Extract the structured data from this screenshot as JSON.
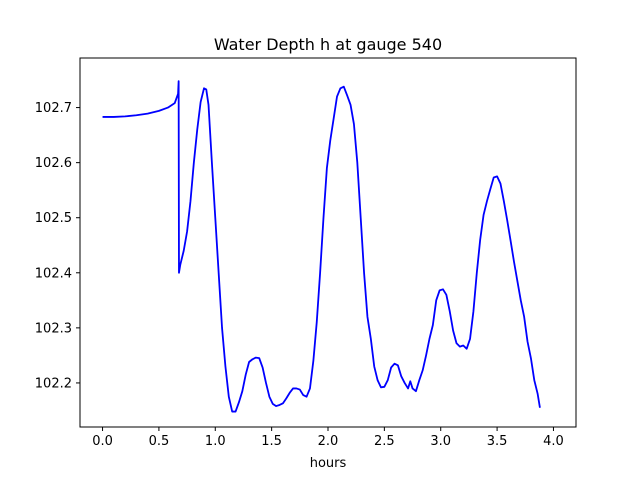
{
  "chart_data": {
    "type": "line",
    "title": "Water Depth h at gauge 540",
    "xlabel": "hours",
    "ylabel": "",
    "xlim": [
      -0.2,
      4.2
    ],
    "ylim": [
      102.12,
      102.79
    ],
    "grid": false,
    "legend": "none",
    "x_ticks": [
      0.0,
      0.5,
      1.0,
      1.5,
      2.0,
      2.5,
      3.0,
      3.5,
      4.0
    ],
    "x_tick_labels": [
      "0.0",
      "0.5",
      "1.0",
      "1.5",
      "2.0",
      "2.5",
      "3.0",
      "3.5",
      "4.0"
    ],
    "y_ticks": [
      102.2,
      102.3,
      102.4,
      102.5,
      102.6,
      102.7
    ],
    "y_tick_labels": [
      "102.2",
      "102.3",
      "102.4",
      "102.5",
      "102.6",
      "102.7"
    ],
    "series": [
      {
        "color": "#0000ff",
        "points": [
          [
            0.0,
            102.683
          ],
          [
            0.1,
            102.683
          ],
          [
            0.2,
            102.684
          ],
          [
            0.3,
            102.686
          ],
          [
            0.4,
            102.689
          ],
          [
            0.5,
            102.694
          ],
          [
            0.58,
            102.7
          ],
          [
            0.64,
            102.708
          ],
          [
            0.67,
            102.725
          ],
          [
            0.675,
            102.748
          ],
          [
            0.678,
            102.4
          ],
          [
            0.69,
            102.415
          ],
          [
            0.72,
            102.44
          ],
          [
            0.75,
            102.475
          ],
          [
            0.78,
            102.53
          ],
          [
            0.81,
            102.6
          ],
          [
            0.84,
            102.66
          ],
          [
            0.87,
            102.71
          ],
          [
            0.9,
            102.735
          ],
          [
            0.92,
            102.733
          ],
          [
            0.94,
            102.705
          ],
          [
            0.97,
            102.6
          ],
          [
            1.0,
            102.5
          ],
          [
            1.03,
            102.4
          ],
          [
            1.06,
            102.3
          ],
          [
            1.09,
            102.23
          ],
          [
            1.12,
            102.175
          ],
          [
            1.15,
            102.148
          ],
          [
            1.18,
            102.148
          ],
          [
            1.21,
            102.165
          ],
          [
            1.24,
            102.185
          ],
          [
            1.27,
            102.215
          ],
          [
            1.3,
            102.238
          ],
          [
            1.33,
            102.243
          ],
          [
            1.36,
            102.246
          ],
          [
            1.39,
            102.245
          ],
          [
            1.42,
            102.228
          ],
          [
            1.45,
            102.2
          ],
          [
            1.48,
            102.175
          ],
          [
            1.51,
            102.162
          ],
          [
            1.54,
            102.158
          ],
          [
            1.57,
            102.16
          ],
          [
            1.6,
            102.163
          ],
          [
            1.63,
            102.172
          ],
          [
            1.66,
            102.182
          ],
          [
            1.69,
            102.19
          ],
          [
            1.72,
            102.19
          ],
          [
            1.75,
            102.188
          ],
          [
            1.78,
            102.178
          ],
          [
            1.81,
            102.175
          ],
          [
            1.84,
            102.19
          ],
          [
            1.87,
            102.24
          ],
          [
            1.9,
            102.31
          ],
          [
            1.93,
            102.4
          ],
          [
            1.96,
            102.5
          ],
          [
            1.99,
            102.59
          ],
          [
            2.02,
            102.64
          ],
          [
            2.05,
            102.68
          ],
          [
            2.08,
            102.72
          ],
          [
            2.11,
            102.735
          ],
          [
            2.14,
            102.738
          ],
          [
            2.17,
            102.722
          ],
          [
            2.2,
            102.705
          ],
          [
            2.23,
            102.67
          ],
          [
            2.26,
            102.6
          ],
          [
            2.29,
            102.5
          ],
          [
            2.32,
            102.4
          ],
          [
            2.35,
            102.32
          ],
          [
            2.38,
            102.28
          ],
          [
            2.41,
            102.23
          ],
          [
            2.44,
            102.205
          ],
          [
            2.47,
            102.192
          ],
          [
            2.5,
            102.193
          ],
          [
            2.53,
            102.205
          ],
          [
            2.56,
            102.228
          ],
          [
            2.59,
            102.235
          ],
          [
            2.62,
            102.232
          ],
          [
            2.65,
            102.212
          ],
          [
            2.68,
            102.2
          ],
          [
            2.71,
            102.19
          ],
          [
            2.73,
            102.203
          ],
          [
            2.75,
            102.19
          ],
          [
            2.78,
            102.185
          ],
          [
            2.81,
            102.205
          ],
          [
            2.84,
            102.223
          ],
          [
            2.87,
            102.25
          ],
          [
            2.9,
            102.28
          ],
          [
            2.93,
            102.305
          ],
          [
            2.96,
            102.35
          ],
          [
            2.99,
            102.368
          ],
          [
            3.02,
            102.37
          ],
          [
            3.05,
            102.36
          ],
          [
            3.08,
            102.33
          ],
          [
            3.11,
            102.295
          ],
          [
            3.14,
            102.272
          ],
          [
            3.17,
            102.266
          ],
          [
            3.2,
            102.268
          ],
          [
            3.23,
            102.262
          ],
          [
            3.26,
            102.28
          ],
          [
            3.29,
            102.33
          ],
          [
            3.32,
            102.4
          ],
          [
            3.35,
            102.46
          ],
          [
            3.38,
            102.505
          ],
          [
            3.41,
            102.53
          ],
          [
            3.44,
            102.552
          ],
          [
            3.47,
            102.573
          ],
          [
            3.5,
            102.575
          ],
          [
            3.53,
            102.562
          ],
          [
            3.56,
            102.53
          ],
          [
            3.59,
            102.495
          ],
          [
            3.62,
            102.458
          ],
          [
            3.65,
            102.42
          ],
          [
            3.68,
            102.385
          ],
          [
            3.71,
            102.35
          ],
          [
            3.74,
            102.32
          ],
          [
            3.77,
            102.275
          ],
          [
            3.8,
            102.245
          ],
          [
            3.83,
            102.205
          ],
          [
            3.86,
            102.18
          ],
          [
            3.88,
            102.155
          ]
        ]
      }
    ]
  }
}
